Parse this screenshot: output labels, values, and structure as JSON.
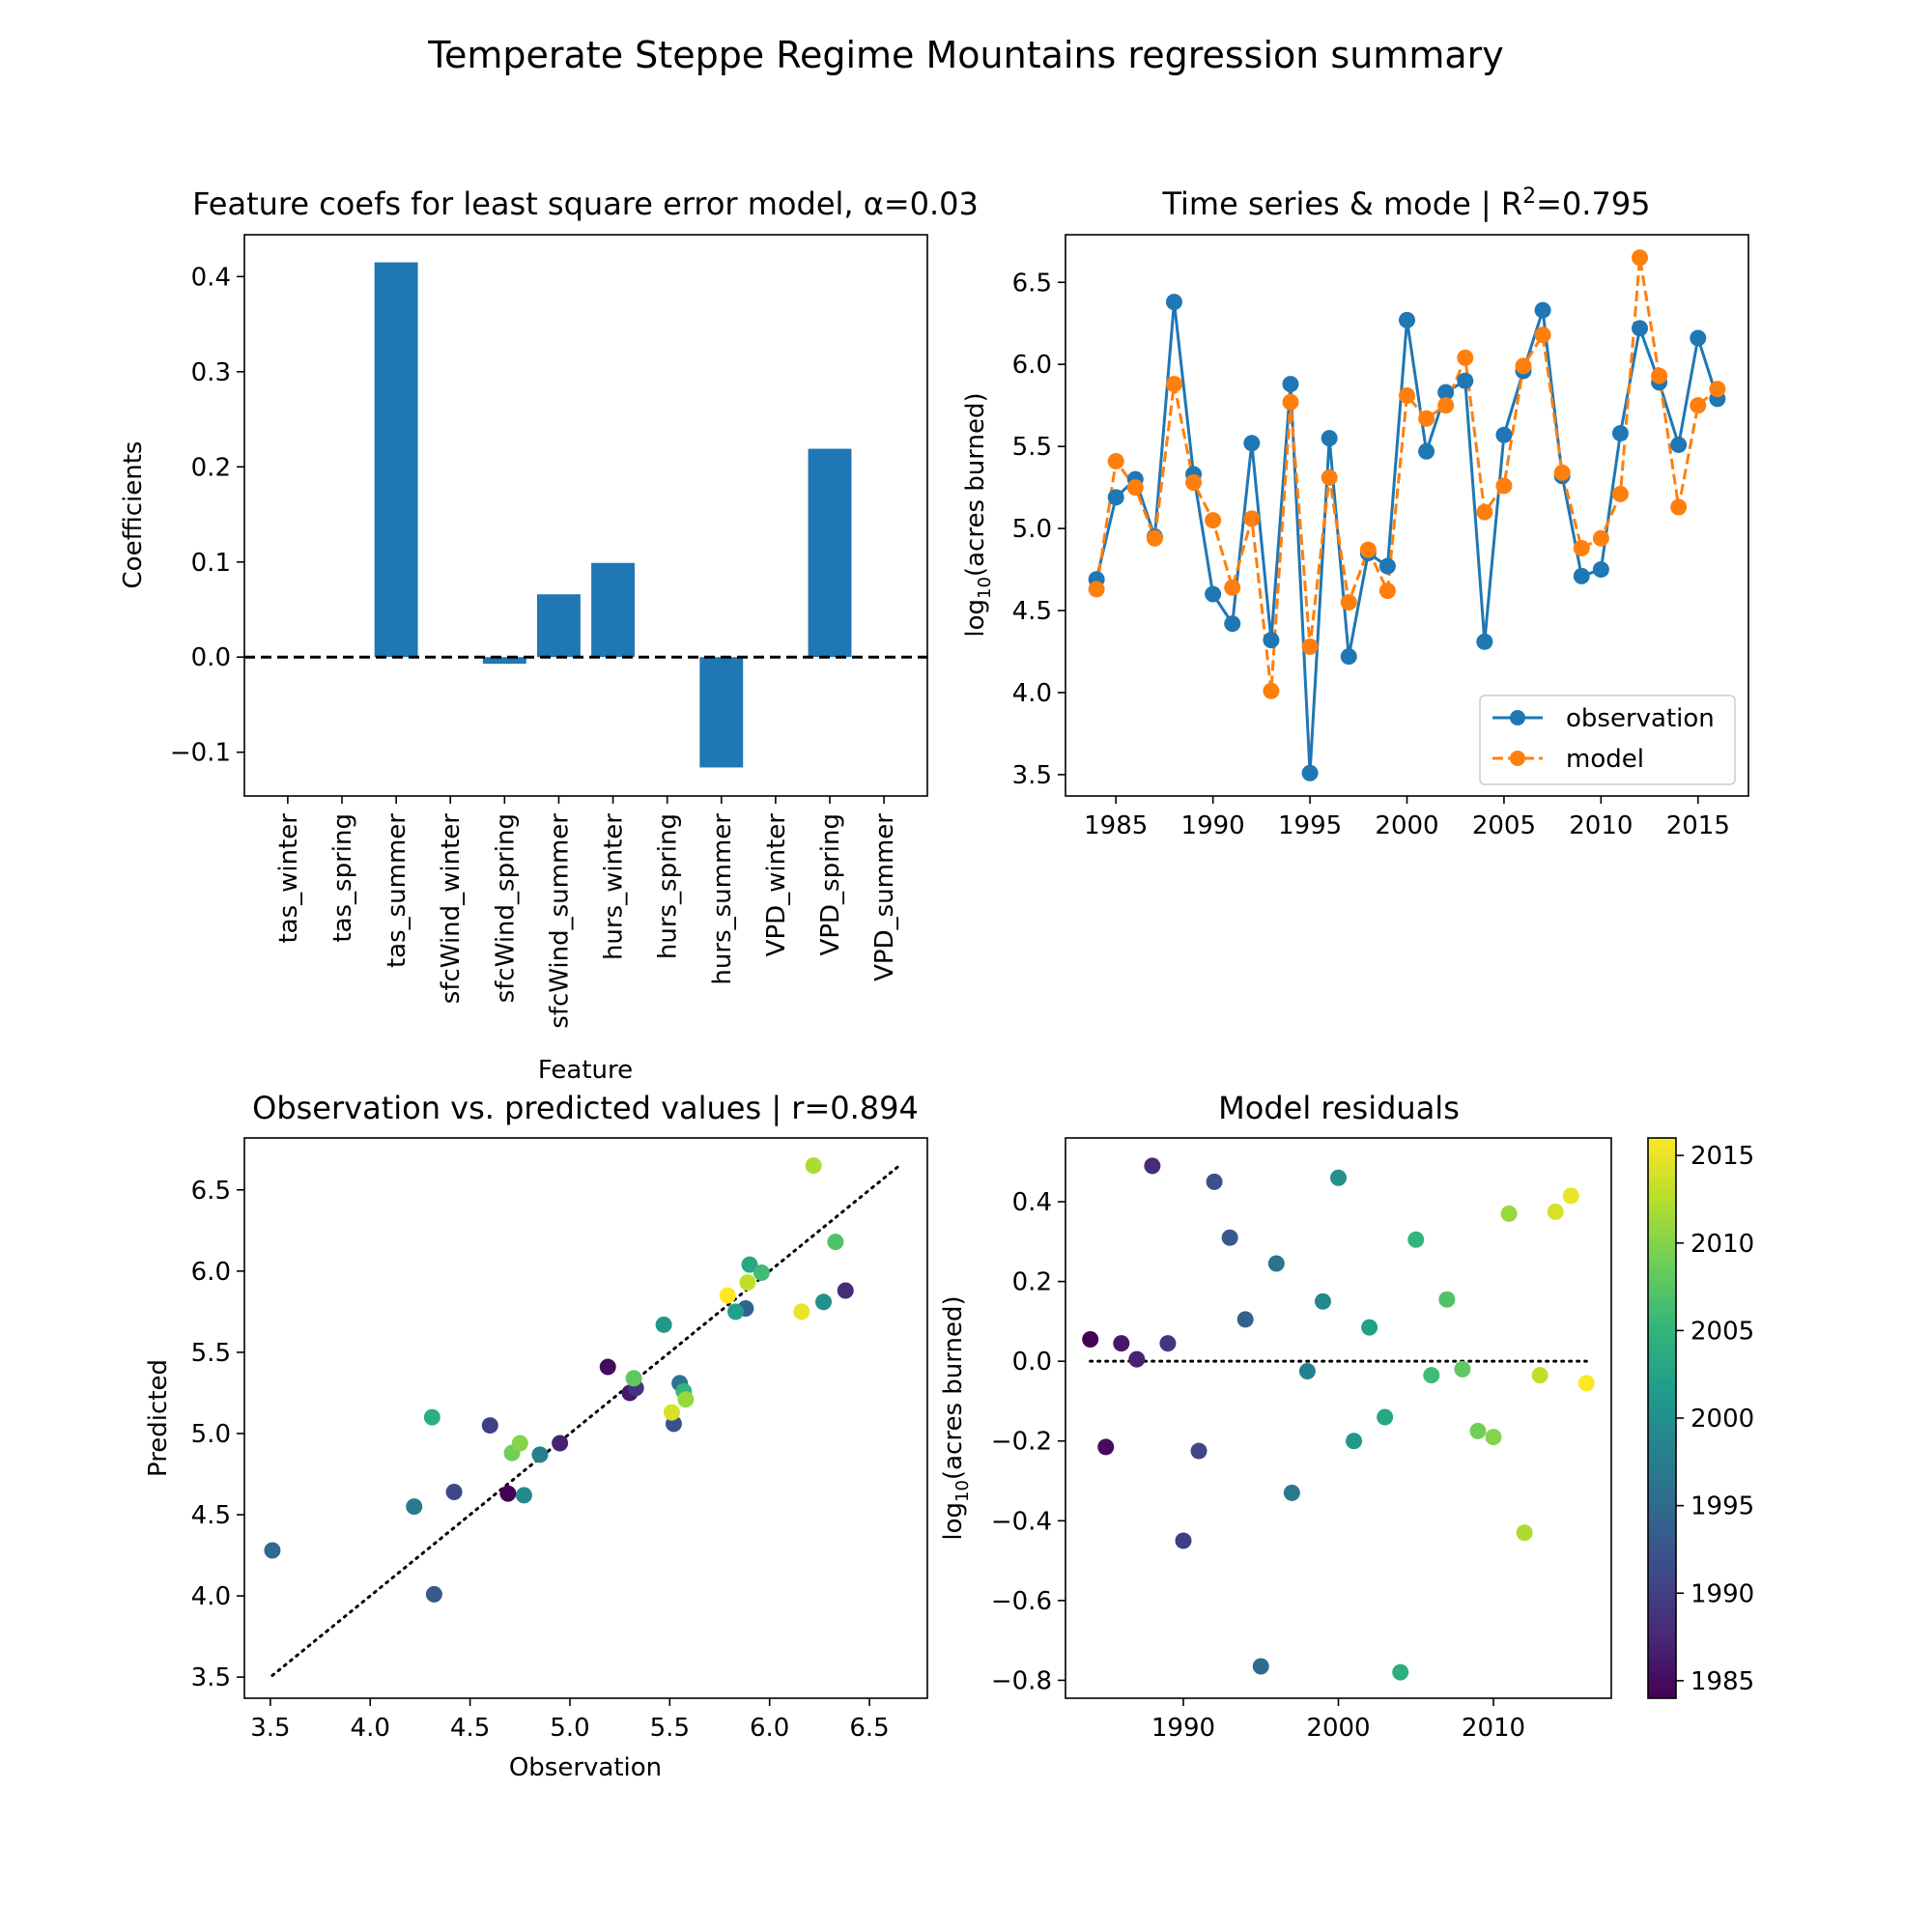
{
  "figure": {
    "suptitle": "Temperate Steppe Regime Mountains regression summary"
  },
  "colors": {
    "blue": "#1f77b4",
    "orange": "#ff7f0e",
    "black": "#000000"
  },
  "chart_data": [
    {
      "id": "coefs",
      "type": "bar",
      "title": "Feature coefs for least square error model, α=0.03",
      "xlabel": "Feature",
      "ylabel": "Coefficients",
      "categories": [
        "tas_winter",
        "tas_spring",
        "tas_summer",
        "sfcWind_winter",
        "sfcWind_spring",
        "sfcWind_summer",
        "hurs_winter",
        "hurs_spring",
        "hurs_summer",
        "VPD_winter",
        "VPD_spring",
        "VPD_summer"
      ],
      "values": [
        0,
        0,
        0.415,
        0,
        -0.007,
        0.066,
        0.099,
        0,
        -0.116,
        0,
        0.219,
        0
      ],
      "ylim": [
        -0.146,
        0.444
      ],
      "yticks": [
        -0.1,
        0.0,
        0.1,
        0.2,
        0.3,
        0.4
      ],
      "ytick_labels": [
        "−0.1",
        "0.0",
        "0.1",
        "0.2",
        "0.3",
        "0.4"
      ],
      "reference_line": {
        "y": 0,
        "style": "dashed"
      },
      "grid": false
    },
    {
      "id": "timeseries",
      "type": "line",
      "title_main": "Time series & mode | R",
      "title_sup": "2",
      "title_end": "=0.795",
      "ylabel_main": "log",
      "ylabel_sub": "10",
      "ylabel_end": "(acres burned)",
      "x": [
        1984,
        1985,
        1986,
        1987,
        1988,
        1989,
        1990,
        1991,
        1992,
        1993,
        1994,
        1995,
        1996,
        1997,
        1998,
        1999,
        2000,
        2001,
        2002,
        2003,
        2004,
        2005,
        2006,
        2007,
        2008,
        2009,
        2010,
        2011,
        2012,
        2013,
        2014,
        2015,
        2016
      ],
      "series": [
        {
          "name": "observation",
          "style": "solid",
          "values": [
            4.69,
            5.19,
            5.3,
            4.95,
            6.38,
            5.33,
            4.6,
            4.42,
            5.52,
            4.32,
            5.88,
            3.51,
            5.55,
            4.22,
            4.85,
            4.77,
            6.27,
            5.47,
            5.83,
            5.9,
            4.31,
            5.57,
            5.96,
            6.33,
            5.32,
            4.71,
            4.75,
            5.58,
            6.22,
            5.89,
            5.51,
            6.16,
            5.79
          ]
        },
        {
          "name": "model",
          "style": "dashed",
          "values": [
            4.63,
            5.41,
            5.25,
            4.94,
            5.88,
            5.28,
            5.05,
            4.64,
            5.06,
            4.01,
            5.77,
            4.28,
            5.31,
            4.55,
            4.87,
            4.62,
            5.81,
            5.67,
            5.75,
            6.04,
            5.1,
            5.26,
            5.99,
            6.18,
            5.34,
            4.88,
            4.94,
            5.21,
            6.65,
            5.93,
            5.13,
            5.75,
            5.85
          ]
        }
      ],
      "xlim": [
        1982.4,
        2017.6
      ],
      "ylim": [
        3.37,
        6.79
      ],
      "xticks": [
        1985,
        1990,
        1995,
        2000,
        2005,
        2010,
        2015
      ],
      "yticks": [
        3.5,
        4.0,
        4.5,
        5.0,
        5.5,
        6.0,
        6.5
      ],
      "ytick_labels": [
        "3.5",
        "4.0",
        "4.5",
        "5.0",
        "5.5",
        "6.0",
        "6.5"
      ],
      "legend": "lower-right",
      "grid": false
    },
    {
      "id": "scatter",
      "type": "scatter",
      "title": "Observation vs. predicted values | r=0.894",
      "xlabel": "Observation",
      "ylabel": "Predicted",
      "xlim": [
        3.37,
        6.79
      ],
      "ylim": [
        3.37,
        6.82
      ],
      "xticks": [
        3.5,
        4.0,
        4.5,
        5.0,
        5.5,
        6.0,
        6.5
      ],
      "xtick_labels": [
        "3.5",
        "4.0",
        "4.5",
        "5.0",
        "5.5",
        "6.0",
        "6.5"
      ],
      "yticks": [
        3.5,
        4.0,
        4.5,
        5.0,
        5.5,
        6.0,
        6.5
      ],
      "ytick_labels": [
        "3.5",
        "4.0",
        "4.5",
        "5.0",
        "5.5",
        "6.0",
        "6.5"
      ],
      "reference_line": {
        "from": [
          3.51,
          3.51
        ],
        "to": [
          6.65,
          6.65
        ],
        "style": "dotted"
      },
      "color_by": "year",
      "grid": false
    },
    {
      "id": "residuals",
      "type": "scatter",
      "title": "Model residuals",
      "ylabel_main": "log",
      "ylabel_sub": "10",
      "ylabel_end": "(acres burned)",
      "x": [
        1984,
        1985,
        1986,
        1987,
        1988,
        1989,
        1990,
        1991,
        1992,
        1993,
        1994,
        1995,
        1996,
        1997,
        1998,
        1999,
        2000,
        2001,
        2002,
        2003,
        2004,
        2005,
        2006,
        2007,
        2008,
        2009,
        2010,
        2011,
        2012,
        2013,
        2014,
        2015,
        2016
      ],
      "values": [
        0.055,
        -0.215,
        0.045,
        0.005,
        0.49,
        0.045,
        -0.45,
        -0.225,
        0.45,
        0.31,
        0.105,
        -0.765,
        0.245,
        -0.33,
        -0.025,
        0.15,
        0.46,
        -0.2,
        0.085,
        -0.14,
        -0.78,
        0.305,
        -0.035,
        0.155,
        -0.02,
        -0.175,
        -0.19,
        0.37,
        -0.43,
        -0.035,
        0.375,
        0.415,
        -0.055
      ],
      "xlim": [
        1982.4,
        2017.6
      ],
      "ylim": [
        -0.845,
        0.56
      ],
      "xticks": [
        1990,
        2000,
        2010
      ],
      "yticks": [
        -0.8,
        -0.6,
        -0.4,
        -0.2,
        0.0,
        0.2,
        0.4
      ],
      "ytick_labels": [
        "−0.8",
        "−0.6",
        "−0.4",
        "−0.2",
        "0.0",
        "0.2",
        "0.4"
      ],
      "reference_line": {
        "y": 0,
        "style": "dotted",
        "x_from": 1984,
        "x_to": 2016
      },
      "colorbar": {
        "min": 1984,
        "max": 2016,
        "ticks": [
          1985,
          1990,
          1995,
          2000,
          2005,
          2010,
          2015
        ],
        "colormap": "viridis"
      },
      "grid": false
    }
  ]
}
